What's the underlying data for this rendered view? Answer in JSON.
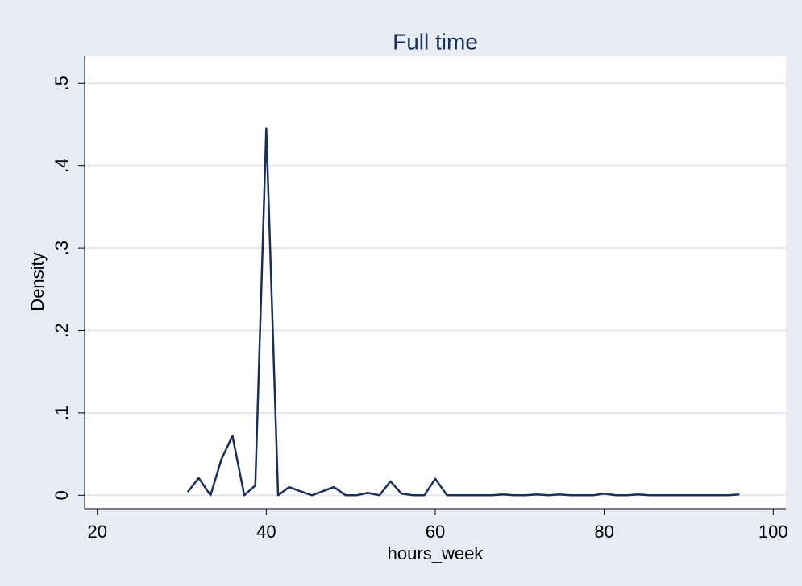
{
  "chart_data": {
    "type": "line",
    "title": "Full time",
    "x_label": "hours_week",
    "y_label": "Density",
    "x": [
      30.7,
      32.0,
      33.4,
      34.7,
      36.0,
      37.4,
      38.7,
      40.0,
      41.4,
      42.7,
      44.0,
      45.4,
      46.7,
      48.0,
      49.4,
      50.7,
      52.0,
      53.4,
      54.7,
      56.0,
      57.4,
      58.7,
      60.0,
      61.4,
      62.7,
      64.0,
      65.4,
      66.7,
      68.0,
      69.4,
      70.7,
      72.0,
      73.4,
      74.7,
      76.0,
      77.4,
      78.7,
      80.0,
      81.4,
      82.7,
      84.0,
      85.4,
      86.7,
      88.0,
      89.4,
      90.7,
      92.0,
      93.4,
      94.7,
      96.0
    ],
    "series": [
      {
        "color": "#1a2e5a",
        "values": [
          0.004,
          0.021,
          0,
          0.044,
          0.072,
          0,
          0.012,
          0.445,
          0,
          0.01,
          0.005,
          0,
          0.005,
          0.01,
          0,
          0,
          0.003,
          0,
          0.017,
          0.002,
          0,
          0,
          0.02,
          0,
          0,
          0,
          0,
          0,
          0.001,
          0,
          0,
          0.001,
          0,
          0.001,
          0,
          0,
          0,
          0.002,
          0,
          0,
          0.001,
          0,
          0,
          0,
          0,
          0,
          0,
          0,
          0,
          0.001
        ]
      }
    ],
    "xlim": [
      18.5,
      101.5
    ],
    "xticks": [
      20,
      40,
      60,
      80,
      100
    ],
    "ylim": [
      -0.0163,
      0.5325
    ],
    "yticks": [
      0,
      {
        "value": 0.1,
        "label": ".1"
      },
      {
        "value": 0.2,
        "label": ".2"
      },
      {
        "value": 0.3,
        "label": ".3"
      },
      {
        "value": 0.4,
        "label": ".4"
      },
      {
        "value": 0.5,
        "label": ".5"
      }
    ],
    "grid": true
  }
}
